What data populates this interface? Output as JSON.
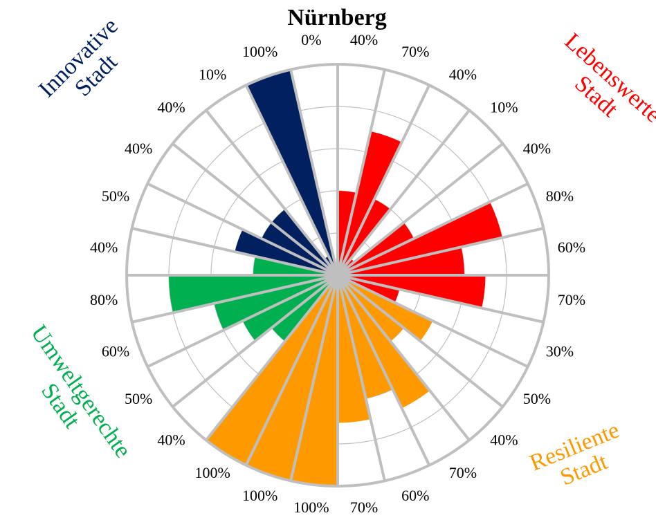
{
  "chart_data": {
    "type": "polar_bar",
    "title": "Nürnberg",
    "rlim": [
      0,
      100
    ],
    "rticks": [
      0,
      20,
      40,
      60,
      80,
      100
    ],
    "grid": true,
    "series": [
      {
        "label": [
          "Lebenswerte",
          "Stadt"
        ],
        "color": "#ff0000",
        "values": [
          40,
          70,
          40,
          10,
          40,
          80,
          60,
          70,
          30
        ],
        "value_labels": [
          "40%",
          "70%",
          "40%",
          "10%",
          "40%",
          "80%",
          "60%",
          "70%",
          "30%"
        ]
      },
      {
        "label": [
          "Resiliente",
          "Stadt"
        ],
        "color": "#ff9900",
        "values": [
          50,
          40,
          70,
          60,
          70,
          100,
          100,
          100
        ],
        "value_labels": [
          "50%",
          "40%",
          "70%",
          "60%",
          "70%",
          "100%",
          "100%",
          "100%"
        ]
      },
      {
        "label": [
          "Umweltgerechte",
          "Stadt"
        ],
        "color": "#00b050",
        "values": [
          40,
          50,
          60,
          80,
          40
        ],
        "value_labels": [
          "40%",
          "50%",
          "60%",
          "80%",
          "40%"
        ]
      },
      {
        "label": [
          "Innovative",
          "Stadt"
        ],
        "color": "#002060",
        "values": [
          50,
          40,
          40,
          10,
          100,
          0
        ],
        "value_labels": [
          "50%",
          "40%",
          "40%",
          "10%",
          "100%",
          "0%"
        ]
      }
    ]
  }
}
